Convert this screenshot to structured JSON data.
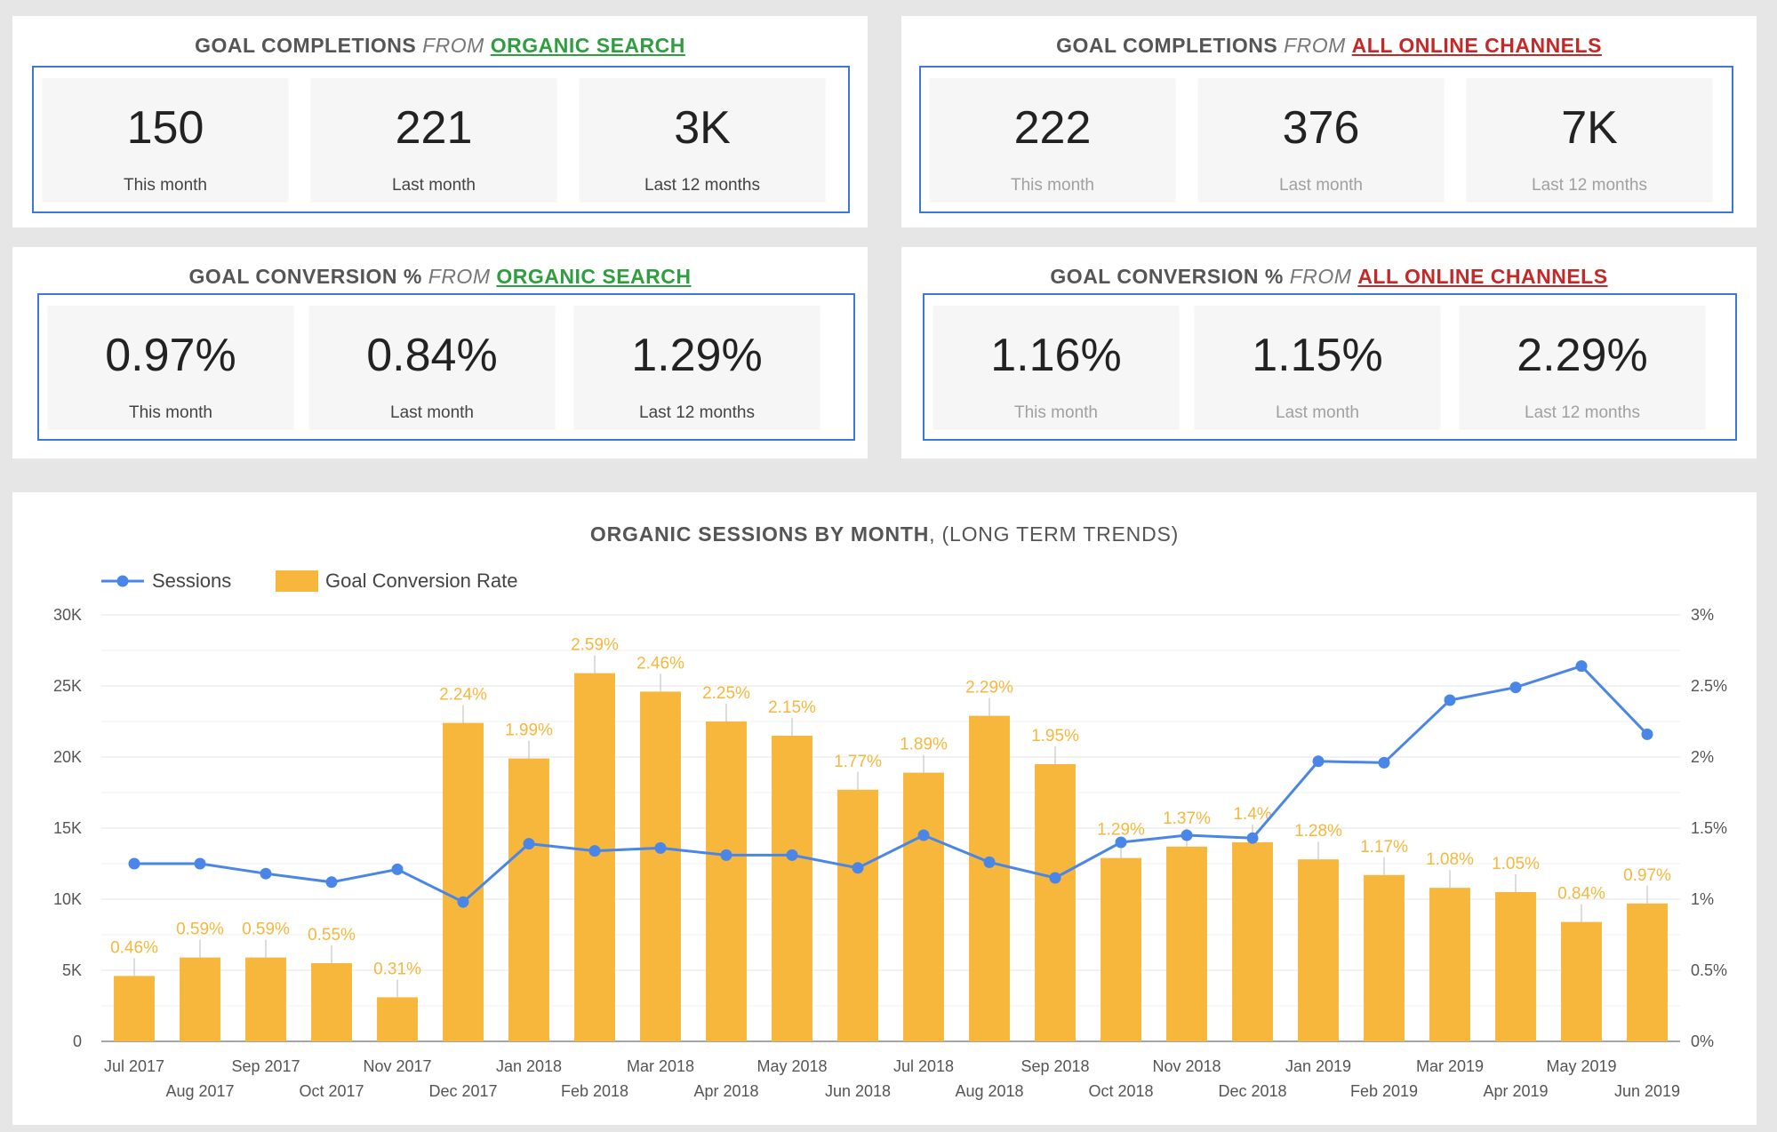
{
  "colors": {
    "accent_green": "#2e9e3f",
    "accent_red": "#c62828",
    "frame_blue": "#3c78d8",
    "bar_orange": "#f6b73c",
    "line_blue": "#4a86e8"
  },
  "panels": [
    {
      "title_bold": "GOAL COMPLETIONS",
      "title_from": "FROM",
      "title_link": "ORGANIC SEARCH",
      "link_color": "#2e9e3f",
      "cards": [
        {
          "value": "150",
          "label": "This month"
        },
        {
          "value": "221",
          "label": "Last month"
        },
        {
          "value": "3K",
          "label": "Last 12 months"
        }
      ]
    },
    {
      "title_bold": "GOAL COMPLETIONS",
      "title_from": "FROM",
      "title_link": "ALL ONLINE CHANNELS",
      "link_color": "#c62828",
      "cards": [
        {
          "value": "222",
          "label": "This month"
        },
        {
          "value": "376",
          "label": "Last month"
        },
        {
          "value": "7K",
          "label": "Last 12 months"
        }
      ]
    },
    {
      "title_bold": "GOAL CONVERSION %",
      "title_from": "FROM",
      "title_link": "ORGANIC SEARCH",
      "link_color": "#2e9e3f",
      "cards": [
        {
          "value": "0.97%",
          "label": "This month"
        },
        {
          "value": "0.84%",
          "label": "Last month"
        },
        {
          "value": "1.29%",
          "label": "Last 12 months"
        }
      ]
    },
    {
      "title_bold": "GOAL CONVERSION %",
      "title_from": "FROM",
      "title_link": "ALL ONLINE CHANNELS",
      "link_color": "#c62828",
      "cards": [
        {
          "value": "1.16%",
          "label": "This month"
        },
        {
          "value": "1.15%",
          "label": "Last month"
        },
        {
          "value": "2.29%",
          "label": "Last 12 months"
        }
      ]
    }
  ],
  "chart_data": {
    "type": "bar",
    "title_bold": "ORGANIC SESSIONS BY MONTH",
    "title_rest": ", (LONG TERM TRENDS)",
    "legend_placement": "top-left",
    "categories": [
      "Jul 2017",
      "Aug 2017",
      "Sep 2017",
      "Oct 2017",
      "Nov 2017",
      "Dec 2017",
      "Jan 2018",
      "Feb 2018",
      "Mar 2018",
      "Apr 2018",
      "May 2018",
      "Jun 2018",
      "Jul 2018",
      "Aug 2018",
      "Sep 2018",
      "Oct 2018",
      "Nov 2018",
      "Dec 2018",
      "Jan 2019",
      "Feb 2019",
      "Mar 2019",
      "Apr 2019",
      "May 2019",
      "Jun 2019"
    ],
    "series": [
      {
        "name": "Sessions",
        "kind": "line",
        "axis": "left",
        "values": [
          12500,
          12500,
          11800,
          11200,
          12100,
          9800,
          13900,
          13400,
          13600,
          13100,
          13100,
          12200,
          14500,
          12600,
          11500,
          14000,
          14500,
          14300,
          19700,
          19600,
          24000,
          24900,
          26400,
          21600
        ]
      },
      {
        "name": "Goal Conversion Rate",
        "kind": "bar",
        "axis": "right",
        "values": [
          0.46,
          0.59,
          0.59,
          0.55,
          0.31,
          2.24,
          1.99,
          2.59,
          2.46,
          2.25,
          2.15,
          1.77,
          1.89,
          2.29,
          1.95,
          1.29,
          1.37,
          1.4,
          1.28,
          1.17,
          1.08,
          1.05,
          0.84,
          0.97
        ],
        "labels": [
          "0.46%",
          "0.59%",
          "0.59%",
          "0.55%",
          "0.31%",
          "2.24%",
          "1.99%",
          "2.59%",
          "2.46%",
          "2.25%",
          "2.15%",
          "1.77%",
          "1.89%",
          "2.29%",
          "1.95%",
          "1.29%",
          "1.37%",
          "1.4%",
          "1.28%",
          "1.17%",
          "1.08%",
          "1.05%",
          "0.84%",
          "0.97%"
        ]
      }
    ],
    "y_left": {
      "ylim": [
        0,
        30000
      ],
      "ticks": [
        0,
        5000,
        10000,
        15000,
        20000,
        25000,
        30000
      ],
      "tick_labels": [
        "0",
        "5K",
        "10K",
        "15K",
        "20K",
        "25K",
        "30K"
      ]
    },
    "y_right": {
      "ylim": [
        0,
        3
      ],
      "ticks": [
        0,
        0.5,
        1,
        1.5,
        2,
        2.5,
        3
      ],
      "tick_labels": [
        "0%",
        "0.5%",
        "1%",
        "1.5%",
        "2%",
        "2.5%",
        "3%"
      ]
    },
    "grid": true
  }
}
